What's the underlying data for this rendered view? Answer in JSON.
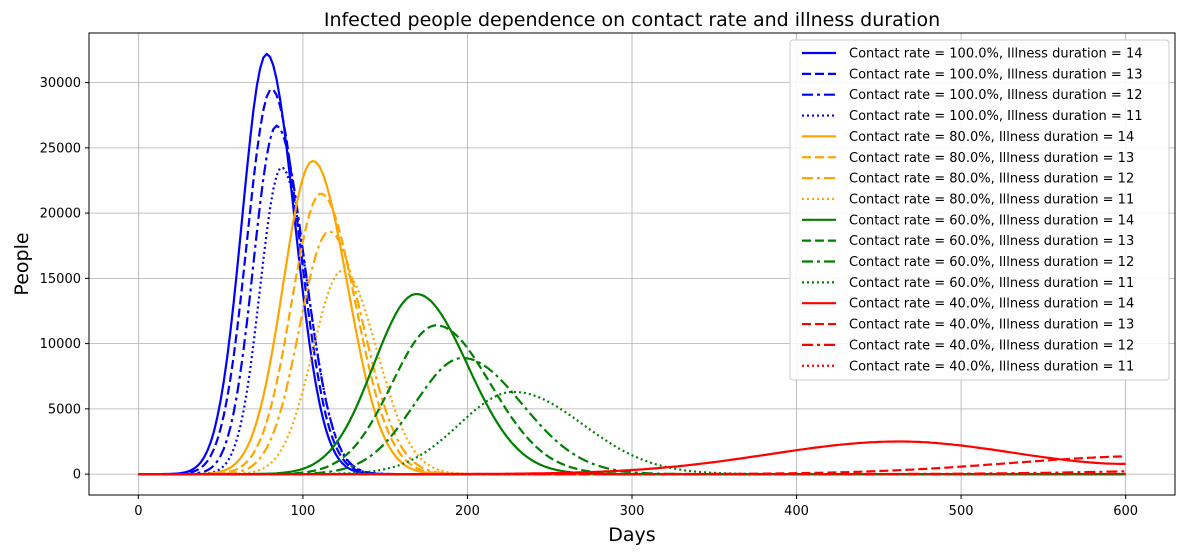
{
  "chart_data": {
    "type": "line",
    "title": "Infected people dependence on contact rate and illness duration",
    "xlabel": "Days",
    "ylabel": "People",
    "xlim": [
      -30,
      630
    ],
    "ylim": [
      -1600,
      33800
    ],
    "xticks": [
      0,
      100,
      200,
      300,
      400,
      500,
      600
    ],
    "yticks": [
      0,
      5000,
      10000,
      15000,
      20000,
      25000,
      30000
    ],
    "grid": true,
    "legend_position": "top-right",
    "series": [
      {
        "name": "Contact rate = 100.0%, Illness duration = 14",
        "color": "#0000ff",
        "style": "solid",
        "peak_x": 78,
        "peak_y": 32200,
        "sigma_left": 15,
        "sigma_right": 17,
        "tail_end": 0
      },
      {
        "name": "Contact rate = 100.0%, Illness duration = 13",
        "color": "#0000ff",
        "style": "dashed",
        "peak_x": 81,
        "peak_y": 29500,
        "sigma_left": 15,
        "sigma_right": 17,
        "tail_end": 0
      },
      {
        "name": "Contact rate = 100.0%, Illness duration = 12",
        "color": "#0000ff",
        "style": "dashdot",
        "peak_x": 84,
        "peak_y": 26700,
        "sigma_left": 14,
        "sigma_right": 17,
        "tail_end": 0
      },
      {
        "name": "Contact rate = 100.0%, Illness duration = 11",
        "color": "#0000ff",
        "style": "dotted",
        "peak_x": 87,
        "peak_y": 23500,
        "sigma_left": 13,
        "sigma_right": 16,
        "tail_end": 0
      },
      {
        "name": "Contact rate = 80.0%, Illness duration = 14",
        "color": "#ffa500",
        "style": "solid",
        "peak_x": 106,
        "peak_y": 24000,
        "sigma_left": 18,
        "sigma_right": 21,
        "tail_end": 0
      },
      {
        "name": "Contact rate = 80.0%, Illness duration = 13",
        "color": "#ffa500",
        "style": "dashed",
        "peak_x": 111,
        "peak_y": 21500,
        "sigma_left": 18,
        "sigma_right": 21,
        "tail_end": 0
      },
      {
        "name": "Contact rate = 80.0%, Illness duration = 12",
        "color": "#ffa500",
        "style": "dashdot",
        "peak_x": 116,
        "peak_y": 18600,
        "sigma_left": 18,
        "sigma_right": 21,
        "tail_end": 0
      },
      {
        "name": "Contact rate = 80.0%, Illness duration = 11",
        "color": "#ffa500",
        "style": "dotted",
        "peak_x": 124,
        "peak_y": 15600,
        "sigma_left": 18,
        "sigma_right": 21,
        "tail_end": 0
      },
      {
        "name": "Contact rate = 60.0%, Illness duration = 14",
        "color": "#008000",
        "style": "solid",
        "peak_x": 169,
        "peak_y": 13800,
        "sigma_left": 26,
        "sigma_right": 31,
        "tail_end": 0
      },
      {
        "name": "Contact rate = 60.0%, Illness duration = 13",
        "color": "#008000",
        "style": "dashed",
        "peak_x": 181,
        "peak_y": 11400,
        "sigma_left": 27,
        "sigma_right": 33,
        "tail_end": 0
      },
      {
        "name": "Contact rate = 60.0%, Illness duration = 12",
        "color": "#008000",
        "style": "dashdot",
        "peak_x": 197,
        "peak_y": 8900,
        "sigma_left": 29,
        "sigma_right": 36,
        "tail_end": 0
      },
      {
        "name": "Contact rate = 60.0%, Illness duration = 11",
        "color": "#008000",
        "style": "dotted",
        "peak_x": 228,
        "peak_y": 6300,
        "sigma_left": 33,
        "sigma_right": 42,
        "tail_end": 0
      },
      {
        "name": "Contact rate = 40.0%, Illness duration = 14",
        "color": "#ff0000",
        "style": "solid",
        "peak_x": 463,
        "peak_y": 2500,
        "sigma_left": 80,
        "sigma_right": 90,
        "tail_end": 780
      },
      {
        "name": "Contact rate = 40.0%, Illness duration = 13",
        "color": "#ff0000",
        "style": "dashed",
        "peak_x": 620,
        "peak_y": 1400,
        "sigma_left": 90,
        "sigma_right": 90,
        "tail_end": 0
      },
      {
        "name": "Contact rate = 40.0%, Illness duration = 12",
        "color": "#ff0000",
        "style": "dashdot",
        "peak_x": 700,
        "peak_y": 400,
        "sigma_left": 90,
        "sigma_right": 90,
        "tail_end": 0
      },
      {
        "name": "Contact rate = 40.0%, Illness duration = 11",
        "color": "#ff0000",
        "style": "dotted",
        "peak_x": 800,
        "peak_y": 200,
        "sigma_left": 90,
        "sigma_right": 90,
        "tail_end": 0
      }
    ]
  }
}
